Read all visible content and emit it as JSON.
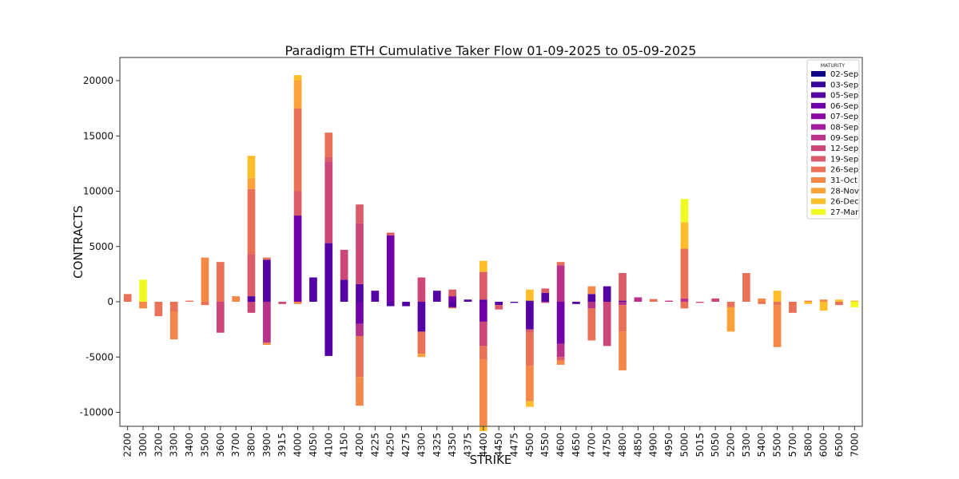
{
  "chart_data": {
    "type": "bar",
    "stacked": true,
    "title": "Paradigm ETH Cumulative Taker Flow 01-09-2025 to 05-09-2025",
    "xlabel": "STRIKE",
    "ylabel": "CONTRACTS",
    "ylim": [
      -11200,
      22500
    ],
    "yticks": [
      -10000,
      -5000,
      0,
      5000,
      10000,
      15000,
      20000
    ],
    "legend_title": "MATURITY",
    "legend_position": "top-right",
    "series": [
      {
        "name": "02-Sep",
        "color": "#0d0887"
      },
      {
        "name": "03-Sep",
        "color": "#350498"
      },
      {
        "name": "05-Sep",
        "color": "#5402a3"
      },
      {
        "name": "06-Sep",
        "color": "#7000a8"
      },
      {
        "name": "07-Sep",
        "color": "#8b0aa5"
      },
      {
        "name": "08-Sep",
        "color": "#a31e9a"
      },
      {
        "name": "09-Sep",
        "color": "#b83289"
      },
      {
        "name": "12-Sep",
        "color": "#cc4778"
      },
      {
        "name": "19-Sep",
        "color": "#db5c68"
      },
      {
        "name": "26-Sep",
        "color": "#e97158"
      },
      {
        "name": "31-Oct",
        "color": "#f48849"
      },
      {
        "name": "28-Nov",
        "color": "#fba238"
      },
      {
        "name": "26-Dec",
        "color": "#febd2a"
      },
      {
        "name": "27-Mar",
        "color": "#f0f921"
      }
    ],
    "categories": [
      "2200",
      "3000",
      "3200",
      "3300",
      "3400",
      "3500",
      "3600",
      "3700",
      "3800",
      "3900",
      "3915",
      "4000",
      "4050",
      "4100",
      "4150",
      "4200",
      "4225",
      "4250",
      "4275",
      "4300",
      "4325",
      "4350",
      "4375",
      "4400",
      "4450",
      "4475",
      "4500",
      "4550",
      "4600",
      "4650",
      "4700",
      "4750",
      "4800",
      "4850",
      "4900",
      "4950",
      "5000",
      "5015",
      "5050",
      "5200",
      "5300",
      "5400",
      "5500",
      "5700",
      "5800",
      "6000",
      "6500",
      "7000"
    ],
    "bars": [
      {
        "strike": "2200",
        "segments": [
          [
            "26-Sep",
            700
          ]
        ]
      },
      {
        "strike": "3000",
        "segments": [
          [
            "27-Mar",
            2000
          ],
          [
            "31-Oct",
            -600
          ]
        ]
      },
      {
        "strike": "3200",
        "segments": [
          [
            "26-Sep",
            -1300
          ]
        ]
      },
      {
        "strike": "3300",
        "segments": [
          [
            "26-Sep",
            -900
          ],
          [
            "31-Oct",
            -2500
          ]
        ]
      },
      {
        "strike": "3400",
        "segments": [
          [
            "26-Sep",
            100
          ]
        ]
      },
      {
        "strike": "3500",
        "segments": [
          [
            "31-Oct",
            4000
          ],
          [
            "26-Sep",
            -300
          ]
        ]
      },
      {
        "strike": "3600",
        "segments": [
          [
            "26-Sep",
            3600
          ],
          [
            "12-Sep",
            -2800
          ]
        ]
      },
      {
        "strike": "3700",
        "segments": [
          [
            "31-Oct",
            500
          ]
        ]
      },
      {
        "strike": "3800",
        "segments": [
          [
            "05-Sep",
            500
          ],
          [
            "19-Sep",
            3800
          ],
          [
            "26-Sep",
            5900
          ],
          [
            "28-Nov",
            1000
          ],
          [
            "26-Dec",
            2000
          ],
          [
            "12-Sep",
            -1000
          ]
        ]
      },
      {
        "strike": "3900",
        "segments": [
          [
            "05-Sep",
            3800
          ],
          [
            "26-Sep",
            200
          ],
          [
            "09-Sep",
            -3700
          ],
          [
            "31-Oct",
            -200
          ]
        ]
      },
      {
        "strike": "3915",
        "segments": [
          [
            "12-Sep",
            -200
          ]
        ]
      },
      {
        "strike": "4000",
        "segments": [
          [
            "06-Sep",
            7800
          ],
          [
            "19-Sep",
            2200
          ],
          [
            "26-Sep",
            7500
          ],
          [
            "28-Nov",
            2500
          ],
          [
            "26-Dec",
            500
          ],
          [
            "31-Oct",
            -200
          ]
        ]
      },
      {
        "strike": "4050",
        "segments": [
          [
            "05-Sep",
            2200
          ]
        ]
      },
      {
        "strike": "4100",
        "segments": [
          [
            "05-Sep",
            5300
          ],
          [
            "12-Sep",
            7400
          ],
          [
            "19-Sep",
            400
          ],
          [
            "26-Sep",
            2200
          ],
          [
            "05-Sep",
            -4900
          ]
        ]
      },
      {
        "strike": "4150",
        "segments": [
          [
            "05-Sep",
            2000
          ],
          [
            "12-Sep",
            2700
          ]
        ]
      },
      {
        "strike": "4200",
        "segments": [
          [
            "05-Sep",
            1600
          ],
          [
            "12-Sep",
            5500
          ],
          [
            "19-Sep",
            1700
          ],
          [
            "06-Sep",
            -2000
          ],
          [
            "09-Sep",
            -1100
          ],
          [
            "26-Sep",
            -3700
          ],
          [
            "31-Oct",
            -2600
          ]
        ]
      },
      {
        "strike": "4225",
        "segments": [
          [
            "05-Sep",
            1000
          ]
        ]
      },
      {
        "strike": "4250",
        "segments": [
          [
            "06-Sep",
            6000
          ],
          [
            "19-Sep",
            250
          ],
          [
            "05-Sep",
            -400
          ]
        ]
      },
      {
        "strike": "4275",
        "segments": [
          [
            "05-Sep",
            -400
          ]
        ]
      },
      {
        "strike": "4300",
        "segments": [
          [
            "12-Sep",
            2200
          ],
          [
            "05-Sep",
            -2700
          ],
          [
            "26-Sep",
            -2000
          ],
          [
            "28-Nov",
            -300
          ]
        ]
      },
      {
        "strike": "4325",
        "segments": [
          [
            "05-Sep",
            1000
          ]
        ]
      },
      {
        "strike": "4350",
        "segments": [
          [
            "06-Sep",
            500
          ],
          [
            "19-Sep",
            600
          ],
          [
            "05-Sep",
            -500
          ],
          [
            "26-Sep",
            -100
          ]
        ]
      },
      {
        "strike": "4375",
        "segments": [
          [
            "05-Sep",
            200
          ]
        ]
      },
      {
        "strike": "4400",
        "segments": [
          [
            "05-Sep",
            200
          ],
          [
            "19-Sep",
            2500
          ],
          [
            "26-Dec",
            1000
          ],
          [
            "06-Sep",
            -1800
          ],
          [
            "12-Sep",
            -2200
          ],
          [
            "26-Sep",
            -1200
          ],
          [
            "31-Oct",
            -6000
          ],
          [
            "26-Dec",
            -500
          ]
        ]
      },
      {
        "strike": "4450",
        "segments": [
          [
            "05-Sep",
            -300
          ],
          [
            "19-Sep",
            -400
          ]
        ]
      },
      {
        "strike": "4475",
        "segments": [
          [
            "05-Sep",
            -100
          ]
        ]
      },
      {
        "strike": "4500",
        "segments": [
          [
            "05-Sep",
            100
          ],
          [
            "26-Dec",
            1000
          ],
          [
            "05-Sep",
            -2500
          ],
          [
            "19-Sep",
            -300
          ],
          [
            "26-Sep",
            -3000
          ],
          [
            "31-Oct",
            -3200
          ],
          [
            "26-Dec",
            -500
          ]
        ]
      },
      {
        "strike": "4550",
        "segments": [
          [
            "05-Sep",
            800
          ],
          [
            "19-Sep",
            400
          ],
          [
            "12-Sep",
            -100
          ]
        ]
      },
      {
        "strike": "4600",
        "segments": [
          [
            "09-Sep",
            3300
          ],
          [
            "26-Sep",
            300
          ],
          [
            "06-Sep",
            -3800
          ],
          [
            "09-Sep",
            -1200
          ],
          [
            "19-Sep",
            -300
          ],
          [
            "31-Oct",
            -400
          ]
        ]
      },
      {
        "strike": "4650",
        "segments": [
          [
            "05-Sep",
            -200
          ]
        ]
      },
      {
        "strike": "4700",
        "segments": [
          [
            "05-Sep",
            700
          ],
          [
            "31-Oct",
            700
          ],
          [
            "09-Sep",
            -600
          ],
          [
            "26-Sep",
            -2900
          ]
        ]
      },
      {
        "strike": "4750",
        "segments": [
          [
            "05-Sep",
            1400
          ],
          [
            "12-Sep",
            -4000
          ]
        ]
      },
      {
        "strike": "4800",
        "segments": [
          [
            "05-Sep",
            100
          ],
          [
            "19-Sep",
            2500
          ],
          [
            "09-Sep",
            -300
          ],
          [
            "26-Sep",
            -2400
          ],
          [
            "31-Oct",
            -3500
          ]
        ]
      },
      {
        "strike": "4850",
        "segments": [
          [
            "09-Sep",
            400
          ]
        ]
      },
      {
        "strike": "4900",
        "segments": [
          [
            "26-Sep",
            250
          ]
        ]
      },
      {
        "strike": "4950",
        "segments": [
          [
            "09-Sep",
            100
          ]
        ]
      },
      {
        "strike": "5000",
        "segments": [
          [
            "09-Sep",
            300
          ],
          [
            "26-Sep",
            4500
          ],
          [
            "26-Dec",
            2400
          ],
          [
            "27-Mar",
            2100
          ],
          [
            "26-Sep",
            -600
          ]
        ]
      },
      {
        "strike": "5015",
        "segments": [
          [
            "12-Sep",
            -100
          ]
        ]
      },
      {
        "strike": "5050",
        "segments": [
          [
            "12-Sep",
            300
          ]
        ]
      },
      {
        "strike": "5200",
        "segments": [
          [
            "26-Sep",
            -500
          ],
          [
            "28-Nov",
            -2200
          ]
        ]
      },
      {
        "strike": "5300",
        "segments": [
          [
            "26-Sep",
            2600
          ]
        ]
      },
      {
        "strike": "5400",
        "segments": [
          [
            "31-Oct",
            300
          ],
          [
            "26-Sep",
            -200
          ]
        ]
      },
      {
        "strike": "5500",
        "segments": [
          [
            "26-Dec",
            1000
          ],
          [
            "26-Sep",
            -300
          ],
          [
            "31-Oct",
            -3800
          ]
        ]
      },
      {
        "strike": "5700",
        "segments": [
          [
            "26-Sep",
            -1000
          ]
        ]
      },
      {
        "strike": "5800",
        "segments": [
          [
            "31-Oct",
            100
          ],
          [
            "26-Dec",
            -200
          ]
        ]
      },
      {
        "strike": "6000",
        "segments": [
          [
            "31-Oct",
            200
          ],
          [
            "26-Dec",
            -800
          ]
        ]
      },
      {
        "strike": "6500",
        "segments": [
          [
            "26-Dec",
            200
          ],
          [
            "26-Sep",
            -300
          ]
        ]
      },
      {
        "strike": "7000",
        "segments": [
          [
            "26-Dec",
            100
          ],
          [
            "27-Mar",
            -500
          ]
        ]
      }
    ]
  }
}
